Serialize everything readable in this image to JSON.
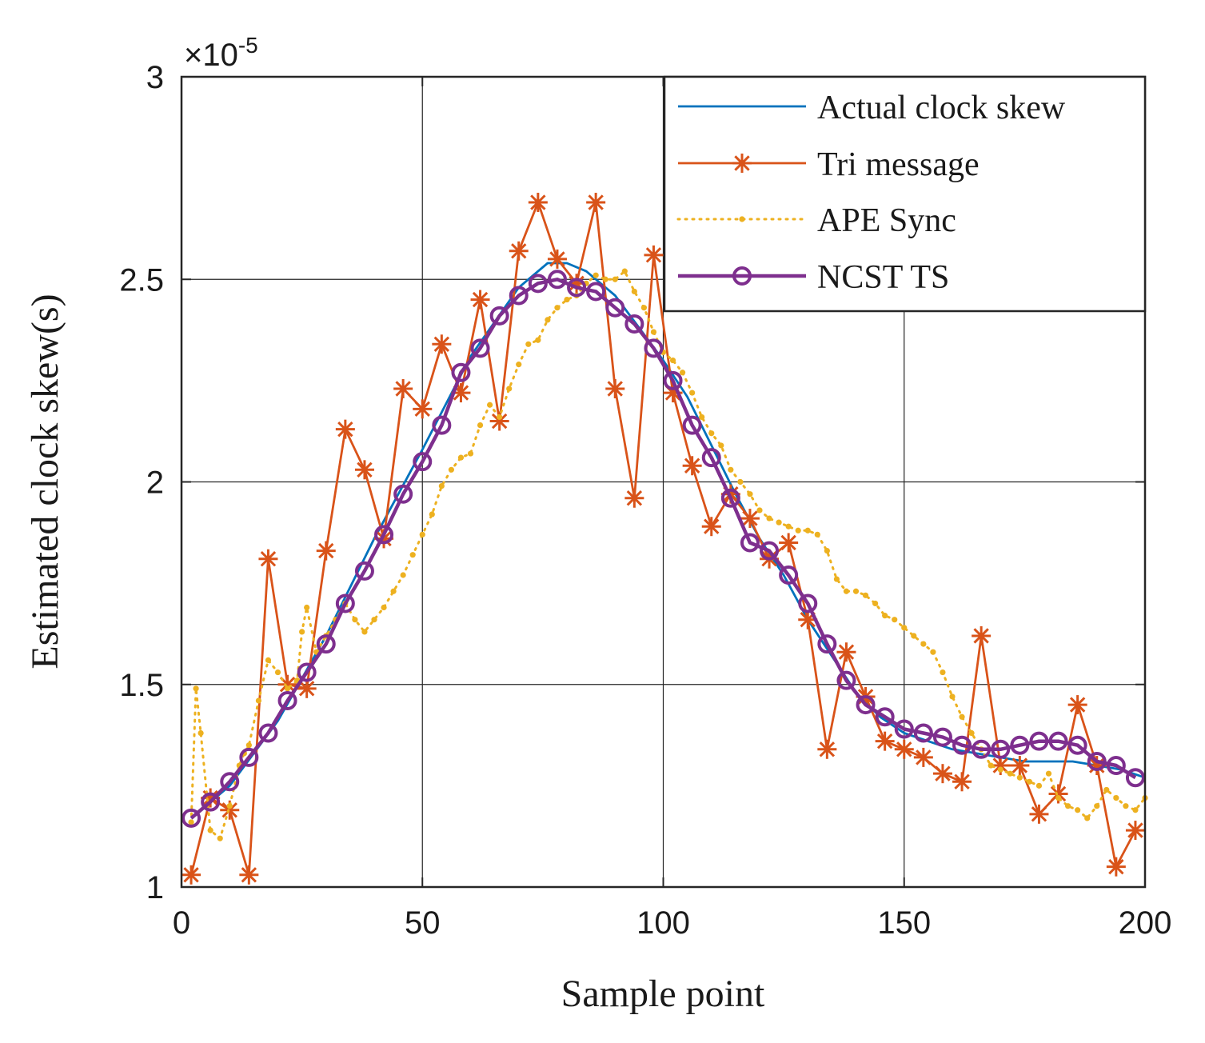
{
  "chart_data": {
    "type": "line",
    "title": "",
    "xlabel": "Sample point",
    "ylabel": "Estimated clock skew(s)",
    "y_multiplier_label": "×10",
    "y_multiplier_exponent": "-5",
    "xlim": [
      0,
      200
    ],
    "ylim": [
      1,
      3
    ],
    "xticks": [
      0,
      50,
      100,
      150,
      200
    ],
    "yticks": [
      1,
      1.5,
      2,
      2.5,
      3
    ],
    "ytick_labels": [
      "1",
      "1.5",
      "2",
      "2.5",
      "3"
    ],
    "grid": true,
    "legend_position": "top-right",
    "series": [
      {
        "name": "Actual clock skew",
        "color": "#0072BD",
        "style": "solid",
        "marker": "none",
        "x": [
          2,
          10,
          20,
          30,
          40,
          50,
          60,
          70,
          76,
          80,
          84,
          90,
          95,
          100,
          105,
          110,
          115,
          120,
          125,
          130,
          135,
          140,
          145,
          150,
          155,
          160,
          165,
          170,
          175,
          180,
          185,
          190,
          195,
          200
        ],
        "y": [
          1.17,
          1.25,
          1.41,
          1.62,
          1.86,
          2.08,
          2.31,
          2.48,
          2.54,
          2.54,
          2.52,
          2.46,
          2.38,
          2.3,
          2.21,
          2.09,
          1.97,
          1.86,
          1.77,
          1.66,
          1.57,
          1.48,
          1.42,
          1.38,
          1.36,
          1.34,
          1.33,
          1.32,
          1.31,
          1.31,
          1.31,
          1.3,
          1.29,
          1.27
        ]
      },
      {
        "name": "Tri message",
        "color": "#D95319",
        "style": "solid",
        "marker": "asterisk",
        "x": [
          2,
          6,
          10,
          14,
          18,
          22,
          26,
          30,
          34,
          38,
          42,
          46,
          50,
          54,
          58,
          62,
          66,
          70,
          74,
          78,
          82,
          86,
          90,
          94,
          98,
          102,
          106,
          110,
          114,
          118,
          122,
          126,
          130,
          134,
          138,
          142,
          146,
          150,
          154,
          158,
          162,
          166,
          170,
          174,
          178,
          182,
          186,
          190,
          194,
          198
        ],
        "y": [
          1.03,
          1.22,
          1.19,
          1.03,
          1.81,
          1.5,
          1.49,
          1.83,
          2.13,
          2.03,
          1.86,
          2.23,
          2.18,
          2.34,
          2.22,
          2.45,
          2.15,
          2.57,
          2.69,
          2.55,
          2.49,
          2.69,
          2.23,
          1.96,
          2.56,
          2.22,
          2.04,
          1.89,
          1.97,
          1.91,
          1.81,
          1.85,
          1.66,
          1.34,
          1.58,
          1.47,
          1.36,
          1.34,
          1.32,
          1.28,
          1.26,
          1.62,
          1.3,
          1.3,
          1.18,
          1.23,
          1.45,
          1.3,
          1.05,
          1.14
        ]
      },
      {
        "name": "APE Sync",
        "color": "#EDB120",
        "style": "dotted",
        "marker": "dot",
        "x": [
          2,
          3,
          4,
          6,
          8,
          10,
          12,
          13,
          14,
          16,
          18,
          20,
          22,
          24,
          25,
          26,
          28,
          30,
          32,
          34,
          36,
          38,
          40,
          42,
          44,
          46,
          48,
          50,
          52,
          54,
          56,
          58,
          60,
          62,
          64,
          66,
          68,
          70,
          72,
          74,
          76,
          78,
          80,
          82,
          84,
          86,
          88,
          90,
          92,
          94,
          96,
          98,
          100,
          102,
          104,
          106,
          108,
          110,
          112,
          114,
          116,
          118,
          120,
          122,
          124,
          126,
          128,
          130,
          132,
          134,
          136,
          138,
          140,
          142,
          144,
          146,
          148,
          150,
          152,
          154,
          156,
          158,
          160,
          162,
          164,
          166,
          168,
          170,
          172,
          174,
          176,
          178,
          180,
          182,
          184,
          186,
          188,
          190,
          192,
          194,
          196,
          198,
          200
        ],
        "y": [
          1.16,
          1.49,
          1.38,
          1.14,
          1.12,
          1.2,
          1.3,
          1.33,
          1.35,
          1.46,
          1.56,
          1.53,
          1.49,
          1.51,
          1.63,
          1.69,
          1.58,
          1.62,
          1.66,
          1.7,
          1.66,
          1.63,
          1.66,
          1.69,
          1.73,
          1.77,
          1.82,
          1.87,
          1.92,
          1.99,
          2.03,
          2.06,
          2.07,
          2.14,
          2.19,
          2.16,
          2.23,
          2.29,
          2.34,
          2.35,
          2.4,
          2.43,
          2.45,
          2.46,
          2.49,
          2.51,
          2.5,
          2.5,
          2.52,
          2.47,
          2.43,
          2.37,
          2.32,
          2.3,
          2.27,
          2.22,
          2.16,
          2.12,
          2.09,
          2.03,
          2.0,
          1.97,
          1.93,
          1.91,
          1.9,
          1.89,
          1.88,
          1.88,
          1.87,
          1.83,
          1.76,
          1.73,
          1.73,
          1.72,
          1.7,
          1.67,
          1.66,
          1.64,
          1.62,
          1.6,
          1.58,
          1.53,
          1.47,
          1.42,
          1.38,
          1.34,
          1.3,
          1.29,
          1.28,
          1.27,
          1.26,
          1.25,
          1.28,
          1.22,
          1.2,
          1.19,
          1.17,
          1.2,
          1.24,
          1.22,
          1.2,
          1.19,
          1.22
        ]
      },
      {
        "name": "NCST TS",
        "color": "#7E2F8E",
        "style": "solid",
        "marker": "circle",
        "x": [
          2,
          6,
          10,
          14,
          18,
          22,
          26,
          30,
          34,
          38,
          42,
          46,
          50,
          54,
          58,
          62,
          66,
          70,
          74,
          78,
          82,
          86,
          90,
          94,
          98,
          102,
          106,
          110,
          114,
          118,
          122,
          126,
          130,
          134,
          138,
          142,
          146,
          150,
          154,
          158,
          162,
          166,
          170,
          174,
          178,
          182,
          186,
          190,
          194,
          198
        ],
        "y": [
          1.17,
          1.21,
          1.26,
          1.32,
          1.38,
          1.46,
          1.53,
          1.6,
          1.7,
          1.78,
          1.87,
          1.97,
          2.05,
          2.14,
          2.27,
          2.33,
          2.41,
          2.46,
          2.49,
          2.5,
          2.48,
          2.47,
          2.43,
          2.39,
          2.33,
          2.25,
          2.14,
          2.06,
          1.96,
          1.85,
          1.83,
          1.77,
          1.7,
          1.6,
          1.51,
          1.45,
          1.42,
          1.39,
          1.38,
          1.37,
          1.35,
          1.34,
          1.34,
          1.35,
          1.36,
          1.36,
          1.35,
          1.31,
          1.3,
          1.27
        ]
      }
    ]
  }
}
